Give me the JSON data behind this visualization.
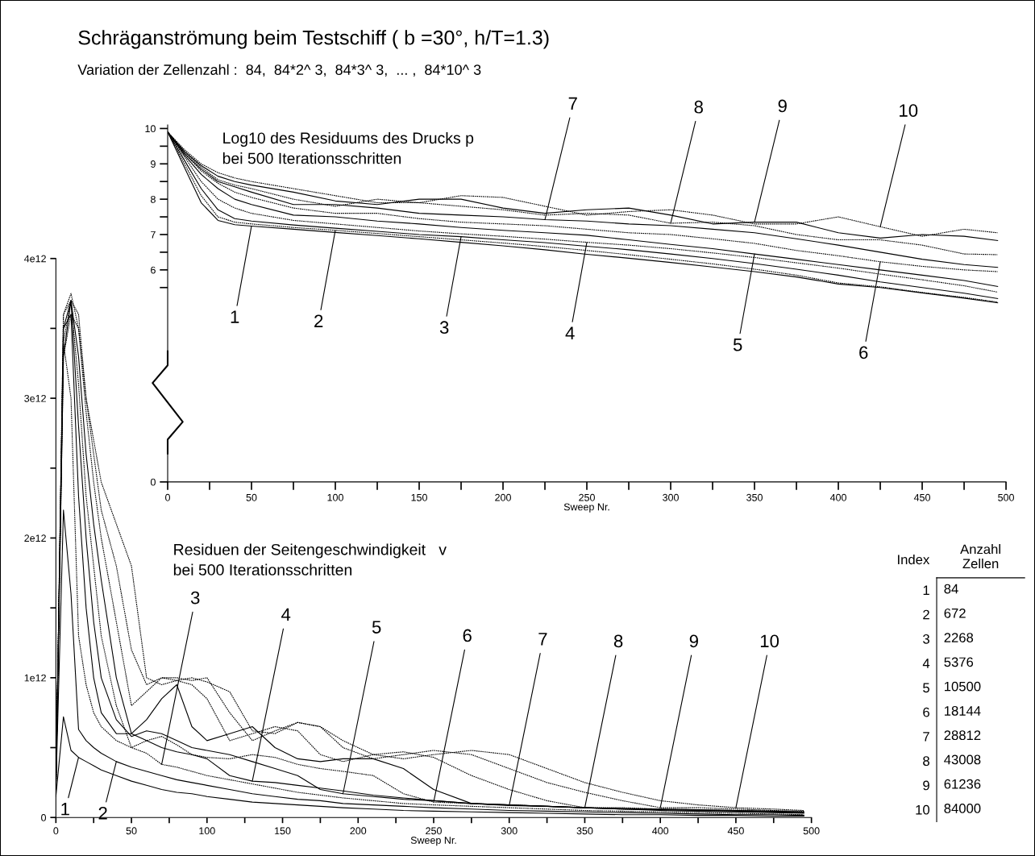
{
  "chart_data": [
    {
      "type": "line",
      "title": "Schräganströmung beim Testschiff ( b =30°, h/T=1.3)",
      "subtitle": "Variation der Zellenzahl :  84,  84*2^ 3,  84*3^ 3,  ... ,  84*10^ 3",
      "xlabel": "Sweep Nr.",
      "xlim": [
        0,
        500
      ],
      "ylim": [
        0,
        10.1
      ],
      "xticks": [
        0,
        {
          "value": 25,
          "label": null
        },
        50,
        {
          "value": 75,
          "label": null
        },
        100,
        {
          "value": 125,
          "label": null
        },
        150,
        {
          "value": 175,
          "label": null
        },
        200,
        {
          "value": 225,
          "label": null
        },
        250,
        {
          "value": 275,
          "label": null
        },
        300,
        {
          "value": 325,
          "label": null
        },
        350,
        {
          "value": 375,
          "label": null
        },
        400,
        {
          "value": 425,
          "label": null
        },
        450,
        {
          "value": 475,
          "label": null
        },
        500
      ],
      "yticks": [
        0,
        {
          "value": 5.5,
          "label": null
        },
        6,
        {
          "value": 6.5,
          "label": null
        },
        7,
        {
          "value": 7.5,
          "label": null
        },
        8,
        {
          "value": 8.5,
          "label": null
        },
        9,
        {
          "value": 9.5,
          "label": null
        },
        10
      ],
      "x": [
        0,
        10,
        20,
        30,
        40,
        50,
        75,
        100,
        125,
        150,
        175,
        200,
        225,
        250,
        275,
        300,
        325,
        350,
        375,
        400,
        425,
        450,
        475,
        495
      ],
      "series": [
        {
          "color": "#000000",
          "line_style": "solid",
          "values": [
            9.9,
            8.9,
            7.9,
            7.4,
            7.28,
            7.24,
            7.15,
            7.06,
            6.97,
            6.88,
            6.78,
            6.68,
            6.57,
            6.44,
            6.33,
            6.21,
            6.08,
            5.95,
            5.8,
            5.6,
            5.5,
            5.35,
            5.2,
            5.07
          ]
        },
        {
          "color": "#000000",
          "line_style": "dotted",
          "values": [
            9.9,
            9.0,
            8.1,
            7.5,
            7.35,
            7.3,
            7.2,
            7.12,
            7.03,
            6.94,
            6.85,
            6.76,
            6.66,
            6.55,
            6.43,
            6.3,
            6.17,
            6.02,
            5.85,
            5.63,
            5.52,
            5.36,
            5.22,
            5.09
          ]
        },
        {
          "color": "#000000",
          "line_style": "solid",
          "values": [
            9.9,
            9.1,
            8.3,
            7.7,
            7.45,
            7.38,
            7.27,
            7.18,
            7.09,
            7.0,
            6.94,
            6.85,
            6.77,
            6.67,
            6.57,
            6.45,
            6.32,
            6.18,
            6.02,
            5.85,
            5.66,
            5.5,
            5.34,
            5.19
          ]
        },
        {
          "color": "#000000",
          "line_style": "dotted",
          "values": [
            9.9,
            9.2,
            8.5,
            8.0,
            7.75,
            7.6,
            7.4,
            7.3,
            7.2,
            7.1,
            7.02,
            6.95,
            6.87,
            6.78,
            6.7,
            6.6,
            6.48,
            6.35,
            6.2,
            6.05,
            5.88,
            5.72,
            5.55,
            5.37
          ]
        },
        {
          "color": "#000000",
          "line_style": "solid",
          "values": [
            9.9,
            9.25,
            8.7,
            8.3,
            8.0,
            7.85,
            7.55,
            7.5,
            7.38,
            7.3,
            7.2,
            7.12,
            7.05,
            6.98,
            6.85,
            6.72,
            6.6,
            6.45,
            6.3,
            6.15,
            6.0,
            5.85,
            5.7,
            5.53
          ]
        },
        {
          "color": "#000000",
          "line_style": "dotted",
          "values": [
            9.9,
            9.3,
            8.8,
            8.45,
            8.2,
            8.05,
            7.75,
            7.6,
            7.6,
            7.45,
            7.35,
            7.3,
            7.25,
            7.15,
            7.05,
            7.0,
            6.88,
            6.75,
            6.55,
            6.4,
            6.23,
            6.1,
            6.0,
            5.95
          ]
        },
        {
          "color": "#000000",
          "line_style": "solid",
          "values": [
            9.9,
            9.3,
            8.85,
            8.5,
            8.35,
            8.2,
            7.85,
            7.85,
            7.75,
            7.6,
            7.55,
            7.5,
            7.42,
            7.38,
            7.3,
            7.25,
            7.15,
            7.05,
            6.88,
            6.7,
            6.5,
            6.3,
            6.15,
            6.07
          ]
        },
        {
          "color": "#000000",
          "line_style": "dotted",
          "values": [
            9.9,
            9.35,
            8.9,
            8.55,
            8.4,
            8.3,
            8.0,
            7.8,
            8.0,
            7.9,
            7.8,
            7.7,
            7.55,
            7.6,
            7.55,
            7.32,
            7.35,
            7.25,
            7.0,
            6.85,
            6.85,
            6.7,
            6.45,
            6.43
          ]
        },
        {
          "color": "#000000",
          "line_style": "solid",
          "values": [
            9.9,
            9.35,
            8.95,
            8.65,
            8.5,
            8.4,
            8.2,
            7.95,
            7.85,
            8.0,
            8.0,
            7.75,
            7.6,
            7.7,
            7.75,
            7.55,
            7.3,
            7.35,
            7.35,
            7.05,
            6.9,
            7.0,
            6.95,
            6.83
          ]
        },
        {
          "color": "#000000",
          "line_style": "dotted",
          "values": [
            9.9,
            9.4,
            9.0,
            8.75,
            8.6,
            8.5,
            8.3,
            8.1,
            7.9,
            7.9,
            8.1,
            8.05,
            7.8,
            7.55,
            7.65,
            7.7,
            7.55,
            7.3,
            7.3,
            7.5,
            7.22,
            6.95,
            7.15,
            7.05
          ]
        }
      ],
      "annotations": [
        "Log10 des Residuums des Drucks p\nbei 500 Iterationsschritten",
        {
          "text": "1",
          "x": 50,
          "y": 7.24
        },
        {
          "text": "2",
          "x": 100,
          "y": 7.12
        },
        {
          "text": "3",
          "x": 175,
          "y": 6.94
        },
        {
          "text": "4",
          "x": 250,
          "y": 6.78
        },
        {
          "text": "5",
          "x": 350,
          "y": 6.45
        },
        {
          "text": "6",
          "x": 425,
          "y": 6.23
        },
        {
          "text": "7",
          "x": 225,
          "y": 7.42
        },
        {
          "text": "8",
          "x": 300,
          "y": 7.32
        },
        {
          "text": "9",
          "x": 350,
          "y": 7.35
        },
        {
          "text": "10",
          "x": 425,
          "y": 7.22
        }
      ]
    },
    {
      "type": "line",
      "xlabel": "Sweep Nr.",
      "xlim": [
        0,
        500
      ],
      "ylim": [
        0,
        4000000000000.0
      ],
      "xticks": [
        0,
        {
          "value": 25,
          "label": null
        },
        50,
        {
          "value": 75,
          "label": null
        },
        100,
        {
          "value": 125,
          "label": null
        },
        150,
        {
          "value": 175,
          "label": null
        },
        200,
        {
          "value": 225,
          "label": null
        },
        250,
        {
          "value": 275,
          "label": null
        },
        300,
        {
          "value": 325,
          "label": null
        },
        350,
        {
          "value": 375,
          "label": null
        },
        400,
        {
          "value": 425,
          "label": null
        },
        450,
        {
          "value": 475,
          "label": null
        },
        500
      ],
      "yticks": [
        0,
        {
          "value": 500000000000.0,
          "label": null
        },
        {
          "value": 1000000000000.0,
          "label": "1e12"
        },
        {
          "value": 1500000000000.0,
          "label": null
        },
        {
          "value": 2000000000000.0,
          "label": "2e12"
        },
        {
          "value": 2500000000000.0,
          "label": null
        },
        {
          "value": 3000000000000.0,
          "label": "3e12"
        },
        {
          "value": 3500000000000.0,
          "label": null
        },
        {
          "value": 4000000000000.0,
          "label": "4e12"
        }
      ],
      "x": [
        0,
        5,
        10,
        15,
        20,
        25,
        30,
        40,
        50,
        60,
        70,
        80,
        90,
        100,
        115,
        130,
        145,
        160,
        175,
        190,
        210,
        230,
        250,
        275,
        300,
        325,
        350,
        375,
        400,
        425,
        450,
        475,
        495
      ],
      "series": [
        {
          "color": "#000000",
          "line_style": "solid",
          "values": [
            150000000000.0,
            720000000000.0,
            480000000000.0,
            430000000000.0,
            400000000000.0,
            370000000000.0,
            340000000000.0,
            300000000000.0,
            260000000000.0,
            230000000000.0,
            200000000000.0,
            180000000000.0,
            170000000000.0,
            150000000000.0,
            130000000000.0,
            110000000000.0,
            100000000000.0,
            90000000000.0,
            80000000000.0,
            70000000000.0,
            60000000000.0,
            50000000000.0,
            45000000000.0,
            40000000000.0,
            35000000000.0,
            30000000000.0,
            25000000000.0,
            20000000000.0,
            20000000000.0,
            15000000000.0,
            15000000000.0,
            10000000000.0,
            10000000000.0
          ]
        },
        {
          "color": "#000000",
          "line_style": "solid",
          "values": [
            200000000000.0,
            2200000000000.0,
            1600000000000.0,
            630000000000.0,
            550000000000.0,
            500000000000.0,
            460000000000.0,
            400000000000.0,
            360000000000.0,
            330000000000.0,
            300000000000.0,
            270000000000.0,
            250000000000.0,
            230000000000.0,
            200000000000.0,
            170000000000.0,
            150000000000.0,
            130000000000.0,
            120000000000.0,
            100000000000.0,
            90000000000.0,
            80000000000.0,
            70000000000.0,
            60000000000.0,
            50000000000.0,
            45000000000.0,
            40000000000.0,
            35000000000.0,
            30000000000.0,
            25000000000.0,
            20000000000.0,
            20000000000.0,
            15000000000.0
          ]
        },
        {
          "color": "#000000",
          "line_style": "dotted",
          "values": [
            200000000000.0,
            3400000000000.0,
            3000000000000.0,
            1300000000000.0,
            950000000000.0,
            750000000000.0,
            650000000000.0,
            550000000000.0,
            500000000000.0,
            460000000000.0,
            380000000000.0,
            360000000000.0,
            330000000000.0,
            300000000000.0,
            270000000000.0,
            240000000000.0,
            210000000000.0,
            180000000000.0,
            160000000000.0,
            140000000000.0,
            120000000000.0,
            100000000000.0,
            90000000000.0,
            80000000000.0,
            70000000000.0,
            60000000000.0,
            50000000000.0,
            45000000000.0,
            40000000000.0,
            35000000000.0,
            30000000000.0,
            25000000000.0,
            20000000000.0
          ]
        },
        {
          "color": "#000000",
          "line_style": "solid",
          "values": [
            200000000000.0,
            3500000000000.0,
            3600000000000.0,
            2300000000000.0,
            1500000000000.0,
            1000000000000.0,
            750000000000.0,
            600000000000.0,
            600000000000.0,
            550000000000.0,
            500000000000.0,
            470000000000.0,
            450000000000.0,
            420000000000.0,
            300000000000.0,
            260000000000.0,
            250000000000.0,
            230000000000.0,
            210000000000.0,
            190000000000.0,
            160000000000.0,
            140000000000.0,
            120000000000.0,
            100000000000.0,
            90000000000.0,
            80000000000.0,
            70000000000.0,
            60000000000.0,
            50000000000.0,
            45000000000.0,
            40000000000.0,
            35000000000.0,
            30000000000.0
          ]
        },
        {
          "color": "#000000",
          "line_style": "solid",
          "values": [
            200000000000.0,
            3300000000000.0,
            3700000000000.0,
            2800000000000.0,
            2000000000000.0,
            1400000000000.0,
            1000000000000.0,
            700000000000.0,
            580000000000.0,
            620000000000.0,
            600000000000.0,
            550000000000.0,
            500000000000.0,
            480000000000.0,
            450000000000.0,
            400000000000.0,
            350000000000.0,
            300000000000.0,
            200000000000.0,
            170000000000.0,
            150000000000.0,
            130000000000.0,
            120000000000.0,
            100000000000.0,
            90000000000.0,
            80000000000.0,
            70000000000.0,
            60000000000.0,
            55000000000.0,
            50000000000.0,
            45000000000.0,
            40000000000.0,
            35000000000.0
          ]
        },
        {
          "color": "#000000",
          "line_style": "dotted",
          "values": [
            200000000000.0,
            3400000000000.0,
            3700000000000.0,
            3100000000000.0,
            2300000000000.0,
            1800000000000.0,
            1300000000000.0,
            800000000000.0,
            500000000000.0,
            550000000000.0,
            580000000000.0,
            520000000000.0,
            450000000000.0,
            430000000000.0,
            420000000000.0,
            450000000000.0,
            430000000000.0,
            380000000000.0,
            350000000000.0,
            330000000000.0,
            300000000000.0,
            170000000000.0,
            110000000000.0,
            100000000000.0,
            90000000000.0,
            80000000000.0,
            70000000000.0,
            60000000000.0,
            55000000000.0,
            50000000000.0,
            45000000000.0,
            40000000000.0,
            35000000000.0
          ]
        },
        {
          "color": "#000000",
          "line_style": "solid",
          "values": [
            200000000000.0,
            3500000000000.0,
            3700000000000.0,
            3300000000000.0,
            2600000000000.0,
            2100000000000.0,
            1700000000000.0,
            1000000000000.0,
            600000000000.0,
            700000000000.0,
            850000000000.0,
            950000000000.0,
            650000000000.0,
            550000000000.0,
            600000000000.0,
            650000000000.0,
            500000000000.0,
            420000000000.0,
            400000000000.0,
            420000000000.0,
            420000000000.0,
            350000000000.0,
            200000000000.0,
            100000000000.0,
            85000000000.0,
            80000000000.0,
            70000000000.0,
            65000000000.0,
            60000000000.0,
            55000000000.0,
            50000000000.0,
            45000000000.0,
            40000000000.0
          ]
        },
        {
          "color": "#000000",
          "line_style": "dotted",
          "values": [
            200000000000.0,
            3600000000000.0,
            3750000000000.0,
            3500000000000.0,
            2900000000000.0,
            2400000000000.0,
            2000000000000.0,
            1400000000000.0,
            800000000000.0,
            900000000000.0,
            1000000000000.0,
            980000000000.0,
            950000000000.0,
            850000000000.0,
            550000000000.0,
            600000000000.0,
            650000000000.0,
            620000000000.0,
            450000000000.0,
            400000000000.0,
            450000000000.0,
            470000000000.0,
            430000000000.0,
            300000000000.0,
            200000000000.0,
            120000000000.0,
            70000000000.0,
            70000000000.0,
            60000000000.0,
            55000000000.0,
            50000000000.0,
            45000000000.0,
            40000000000.0
          ]
        },
        {
          "color": "#000000",
          "line_style": "dotted",
          "values": [
            200000000000.0,
            3600000000000.0,
            3700000000000.0,
            3600000000000.0,
            3000000000000.0,
            2600000000000.0,
            2200000000000.0,
            1800000000000.0,
            1200000000000.0,
            950000000000.0,
            1000000000000.0,
            1000000000000.0,
            980000000000.0,
            1000000000000.0,
            750000000000.0,
            550000000000.0,
            620000000000.0,
            680000000000.0,
            650000000000.0,
            500000000000.0,
            420000000000.0,
            450000000000.0,
            480000000000.0,
            450000000000.0,
            350000000000.0,
            250000000000.0,
            180000000000.0,
            120000000000.0,
            70000000000.0,
            70000000000.0,
            60000000000.0,
            50000000000.0,
            45000000000.0
          ]
        },
        {
          "color": "#000000",
          "line_style": "dotted",
          "values": [
            200000000000.0,
            3300000000000.0,
            3600000000000.0,
            3500000000000.0,
            3000000000000.0,
            2700000000000.0,
            2400000000000.0,
            2100000000000.0,
            1800000000000.0,
            1000000000000.0,
            950000000000.0,
            980000000000.0,
            1000000000000.0,
            970000000000.0,
            900000000000.0,
            620000000000.0,
            600000000000.0,
            680000000000.0,
            650000000000.0,
            550000000000.0,
            450000000000.0,
            420000000000.0,
            450000000000.0,
            480000000000.0,
            450000000000.0,
            350000000000.0,
            250000000000.0,
            180000000000.0,
            120000000000.0,
            90000000000.0,
            70000000000.0,
            60000000000.0,
            50000000000.0
          ]
        }
      ],
      "annotations": [
        "Residuen der Seitengeschwindigkeit   v\nbei 500 Iterationsschritten",
        {
          "text": "1",
          "x": 15,
          "y": 430000000000.0
        },
        {
          "text": "2",
          "x": 40,
          "y": 400000000000.0
        },
        {
          "text": "3",
          "x": 70,
          "y": 380000000000.0
        },
        {
          "text": "4",
          "x": 130,
          "y": 260000000000.0
        },
        {
          "text": "5",
          "x": 190,
          "y": 170000000000.0
        },
        {
          "text": "6",
          "x": 250,
          "y": 110000000000.0
        },
        {
          "text": "7",
          "x": 300,
          "y": 85000000000.0
        },
        {
          "text": "8",
          "x": 350,
          "y": 70000000000.0
        },
        {
          "text": "9",
          "x": 400,
          "y": 70000000000.0
        },
        {
          "text": "10",
          "x": 450,
          "y": 70000000000.0
        }
      ]
    },
    {
      "type": "heatmap",
      "ylabel": "Index",
      "color": "#ffffff",
      "data_labels": true,
      "categories": [
        "Anzahl\nZellen"
      ],
      "y_categories": [
        "1",
        "2",
        "3",
        "4",
        "5",
        "6",
        "7",
        "8",
        "9",
        "10"
      ],
      "cells": [
        [
          84
        ],
        [
          672
        ],
        [
          2268
        ],
        [
          5376
        ],
        [
          10500
        ],
        [
          18144
        ],
        [
          28812
        ],
        [
          43008
        ],
        [
          61236
        ],
        [
          84000
        ]
      ]
    }
  ]
}
